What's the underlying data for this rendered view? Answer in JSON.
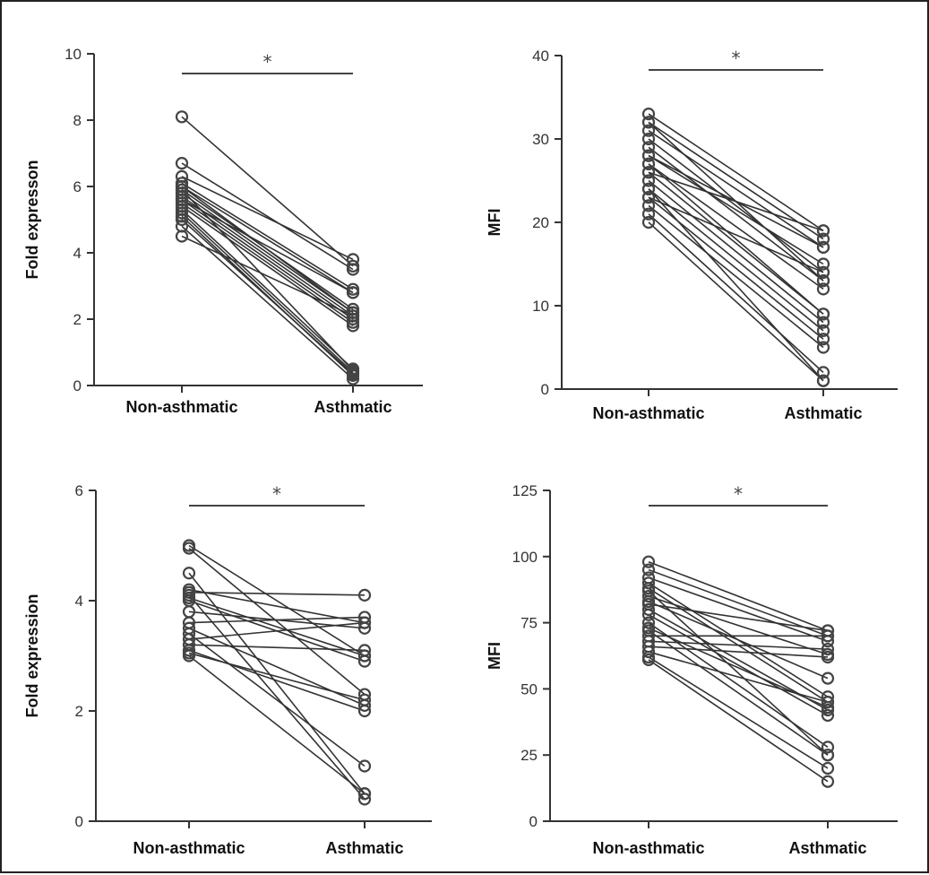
{
  "chart_data": [
    {
      "type": "line",
      "ylabel": "Fold expresson",
      "ylim": [
        0,
        10
      ],
      "yticks": [
        0,
        2,
        4,
        6,
        8,
        10
      ],
      "categories": [
        "Non-asthmatic",
        "Asthmatic"
      ],
      "significance": "*",
      "pairs": [
        [
          8.1,
          3.6
        ],
        [
          6.7,
          3.5
        ],
        [
          6.3,
          3.8
        ],
        [
          6.1,
          2.9
        ],
        [
          6.0,
          2.8
        ],
        [
          5.9,
          2.3
        ],
        [
          5.8,
          2.2
        ],
        [
          5.7,
          2.1
        ],
        [
          5.6,
          2.0
        ],
        [
          5.5,
          1.9
        ],
        [
          5.4,
          1.8
        ],
        [
          5.3,
          0.5
        ],
        [
          5.2,
          0.4
        ],
        [
          5.1,
          0.3
        ],
        [
          5.0,
          0.35
        ],
        [
          4.8,
          0.2
        ],
        [
          4.5,
          2.1
        ],
        [
          5.9,
          0.45
        ],
        [
          6.0,
          2.2
        ],
        [
          5.6,
          2.8
        ]
      ]
    },
    {
      "type": "line",
      "ylabel": "MFI",
      "ylim": [
        0,
        40
      ],
      "yticks": [
        0,
        10,
        20,
        30,
        40
      ],
      "categories": [
        "Non-asthmatic",
        "Asthmatic"
      ],
      "significance": "*",
      "pairs": [
        [
          33,
          19
        ],
        [
          32,
          18
        ],
        [
          31,
          17
        ],
        [
          30,
          14
        ],
        [
          29,
          13
        ],
        [
          28,
          15
        ],
        [
          27,
          12
        ],
        [
          26,
          9
        ],
        [
          25,
          8
        ],
        [
          24,
          7
        ],
        [
          23,
          6
        ],
        [
          22,
          5
        ],
        [
          21,
          2
        ],
        [
          20,
          1
        ],
        [
          28,
          17
        ],
        [
          27,
          9
        ],
        [
          32,
          13
        ],
        [
          26,
          19
        ],
        [
          23,
          14
        ],
        [
          24,
          1
        ]
      ]
    },
    {
      "type": "line",
      "ylabel": "Fold expression",
      "ylim": [
        0,
        6
      ],
      "yticks": [
        0,
        2,
        4,
        6
      ],
      "categories": [
        "Non-asthmatic",
        "Asthmatic"
      ],
      "significance": "*",
      "pairs": [
        [
          5.0,
          3.0
        ],
        [
          4.95,
          2.3
        ],
        [
          4.5,
          0.5
        ],
        [
          4.2,
          3.6
        ],
        [
          4.15,
          4.1
        ],
        [
          4.1,
          0.4
        ],
        [
          4.0,
          2.9
        ],
        [
          3.8,
          3.5
        ],
        [
          3.6,
          3.7
        ],
        [
          3.5,
          2.1
        ],
        [
          3.4,
          1.0
        ],
        [
          3.3,
          3.6
        ],
        [
          3.2,
          3.1
        ],
        [
          3.1,
          2.0
        ],
        [
          3.0,
          0.5
        ],
        [
          3.05,
          2.2
        ],
        [
          4.05,
          3.0
        ]
      ]
    },
    {
      "type": "line",
      "ylabel": "MFI",
      "ylim": [
        0,
        125
      ],
      "yticks": [
        0,
        25,
        50,
        75,
        100,
        125
      ],
      "categories": [
        "Non-asthmatic",
        "Asthmatic"
      ],
      "significance": "*",
      "pairs": [
        [
          98,
          72
        ],
        [
          95,
          70
        ],
        [
          92,
          68
        ],
        [
          90,
          47
        ],
        [
          88,
          45
        ],
        [
          85,
          63
        ],
        [
          83,
          54
        ],
        [
          80,
          42
        ],
        [
          78,
          40
        ],
        [
          75,
          28
        ],
        [
          72,
          25
        ],
        [
          70,
          70
        ],
        [
          68,
          65
        ],
        [
          66,
          62
        ],
        [
          64,
          45
        ],
        [
          62,
          20
        ],
        [
          61,
          15
        ],
        [
          82,
          72
        ],
        [
          73,
          43
        ],
        [
          87,
          25
        ]
      ]
    }
  ]
}
